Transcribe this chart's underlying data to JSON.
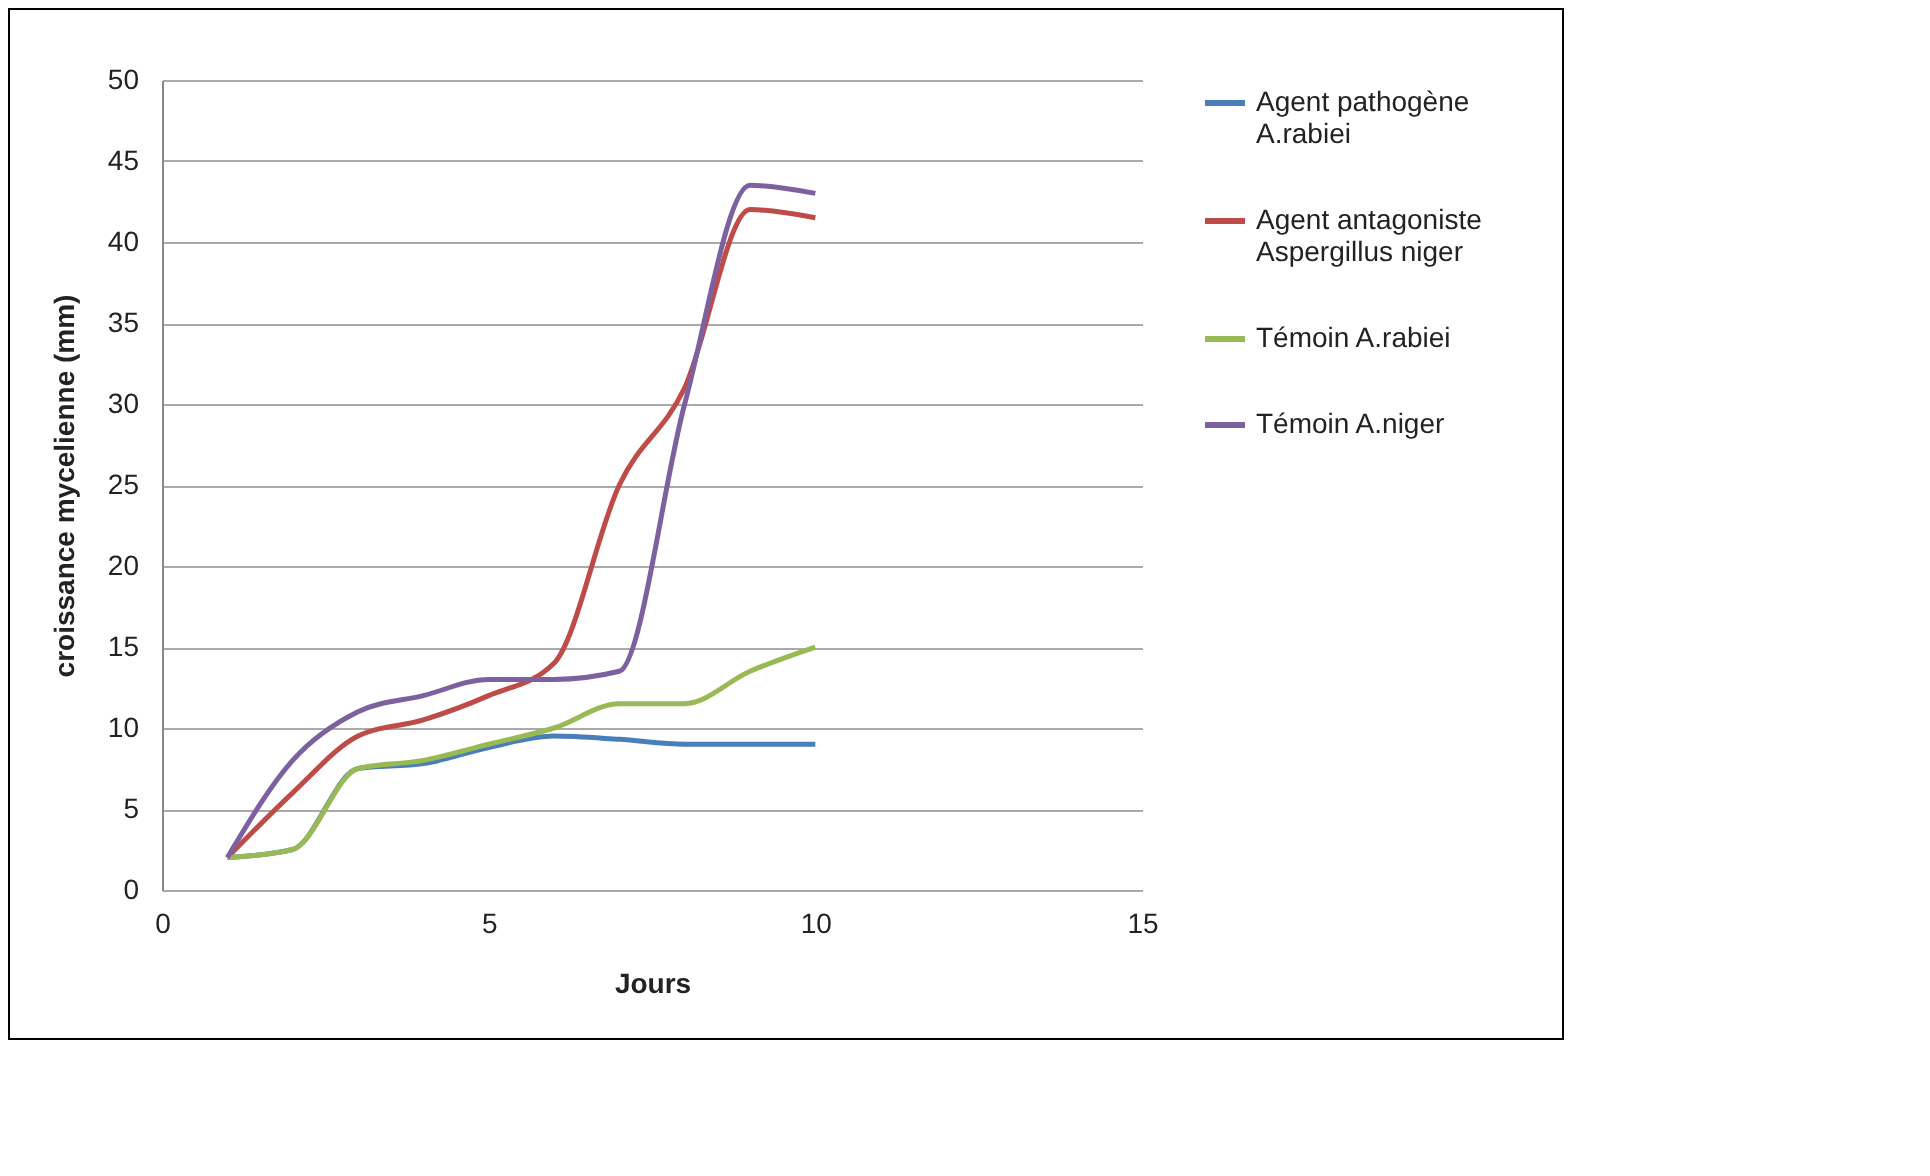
{
  "chart_data": {
    "type": "line",
    "xlabel": "Jours",
    "ylabel": "croissance mycelienne (mm)",
    "x": [
      1,
      2,
      3,
      4,
      5,
      6,
      7,
      8,
      9,
      10
    ],
    "series": [
      {
        "name": "Agent pathogène A.rabiei",
        "color": "#4a7ebb",
        "values": [
          2,
          2.5,
          7.5,
          7.8,
          8.8,
          9.5,
          9.3,
          9,
          9,
          9
        ]
      },
      {
        "name": "Agent antagoniste Aspergillus niger",
        "color": "#be4b48",
        "values": [
          2,
          6,
          9.5,
          10.5,
          12,
          14,
          25,
          31,
          42,
          41.5
        ]
      },
      {
        "name": "Témoin A.rabiei",
        "color": "#98b954",
        "values": [
          2,
          2.5,
          7.5,
          8,
          9,
          10,
          11.5,
          11.5,
          13.5,
          15
        ]
      },
      {
        "name": "Témoin A.niger",
        "color": "#7d60a0",
        "values": [
          2,
          8,
          11,
          12,
          13,
          13,
          13.5,
          30,
          43.5,
          43
        ]
      }
    ],
    "xlim": [
      0,
      15
    ],
    "xticks": [
      0,
      5,
      10,
      15
    ],
    "ylim": [
      0,
      50
    ],
    "yticks": [
      0,
      5,
      10,
      15,
      20,
      25,
      30,
      35,
      40,
      45,
      50
    ],
    "grid": "y",
    "legend": "right",
    "marker": "none",
    "line_style": "solid"
  }
}
